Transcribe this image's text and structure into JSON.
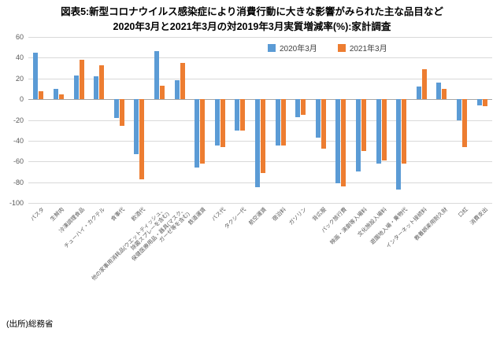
{
  "title": {
    "line1": "図表5:新型コロナウイルス感染症により消費行動に大きな影響がみられた主な品目など",
    "line2": "2020年3月と2021年3月の対2019年3月実質増減率(%):家計調査"
  },
  "source": "(出所)総務省",
  "chart_data": {
    "type": "bar",
    "title": "図表5:新型コロナウイルス感染症により消費行動に大きな影響がみられた主な品目など 2020年3月と2021年3月の対2019年3月実質増減率(%):家計調査",
    "categories": [
      "パスタ",
      "生鮮肉",
      "冷凍調理食品",
      "チューハイ・カクテル",
      "食事代",
      "飲酒代",
      "他の家事用消耗品(ウエットティッシュ、\n除菌スプレーを含む)",
      "保健医療用品・器具(マスク、\nガーゼ等を含む)",
      "鉄道運賃",
      "バス代",
      "タクシー代",
      "航空運賃",
      "宿泊料",
      "ガソリン",
      "背広服",
      "パック旅行費",
      "映画・演劇等入場料",
      "文化施設入場料",
      "遊園地入場・乗物代",
      "インターネット接続料",
      "教養娯楽用耐久財",
      "口紅",
      "消費支出"
    ],
    "series": [
      {
        "name": "2020年3月",
        "color": "#5B9BD5",
        "values": [
          45,
          10,
          23,
          22,
          -18,
          -53,
          46,
          18,
          -66,
          -45,
          -30,
          -85,
          -45,
          -17,
          -37,
          -81,
          -70,
          -62,
          -87,
          12,
          16,
          -20,
          -6
        ]
      },
      {
        "name": "2021年3月",
        "color": "#ED7D31",
        "values": [
          8,
          5,
          38,
          33,
          -26,
          -77,
          13,
          35,
          -62,
          -46,
          -30,
          -71,
          -45,
          -15,
          -48,
          -84,
          -50,
          -59,
          -62,
          29,
          10,
          -46,
          -7
        ]
      }
    ],
    "ylim": [
      -100,
      60
    ],
    "yticks": [
      60,
      40,
      20,
      0,
      -20,
      -40,
      -60,
      -80,
      -100
    ],
    "grid": true,
    "legend_position": "top",
    "xlabel": "",
    "ylabel": ""
  }
}
